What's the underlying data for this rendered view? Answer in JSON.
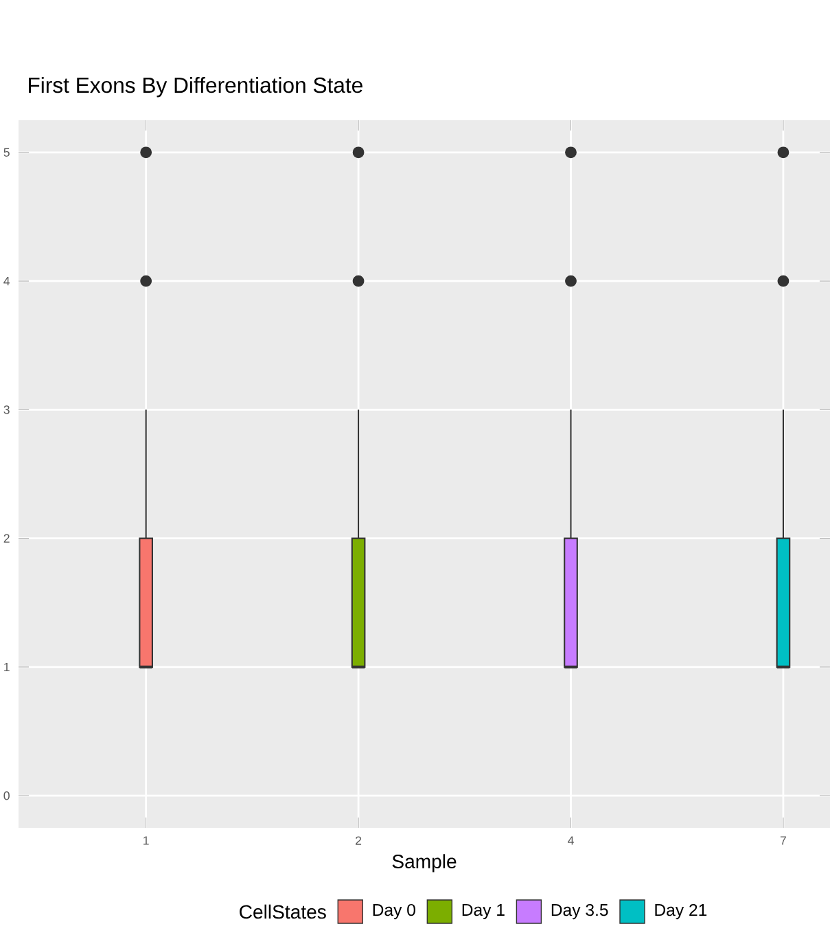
{
  "chart_data": {
    "type": "box",
    "title": "First Exons By Differentiation State",
    "xlabel": "Sample",
    "legend_title": "CellStates",
    "categories": [
      "1",
      "2",
      "4",
      "7"
    ],
    "series": [
      {
        "name": "Day 0",
        "color": "#f8766d",
        "boxes": [
          {
            "low": 1,
            "q1": 1,
            "median": 1,
            "q3": 2,
            "high": 3,
            "outliers": [
              4,
              5
            ]
          },
          null,
          null,
          null
        ]
      },
      {
        "name": "Day 1",
        "color": "#7cae00",
        "boxes": [
          null,
          {
            "low": 1,
            "q1": 1,
            "median": 1,
            "q3": 2,
            "high": 3,
            "outliers": [
              4,
              5
            ]
          },
          null,
          null
        ]
      },
      {
        "name": "Day 3.5",
        "color": "#c77cff",
        "boxes": [
          null,
          null,
          {
            "low": 1,
            "q1": 1,
            "median": 1,
            "q3": 2,
            "high": 3,
            "outliers": [
              4,
              5
            ]
          },
          null
        ]
      },
      {
        "name": "Day 21",
        "color": "#00bfc4",
        "boxes": [
          null,
          null,
          null,
          {
            "low": 1,
            "q1": 1,
            "median": 1,
            "q3": 2,
            "high": 3,
            "outliers": [
              4,
              5
            ]
          }
        ]
      }
    ],
    "ylim": [
      -0.25,
      5.25
    ],
    "yticks": [
      0,
      1,
      2,
      3,
      4,
      5
    ],
    "grid": true,
    "legend": "bottom"
  }
}
